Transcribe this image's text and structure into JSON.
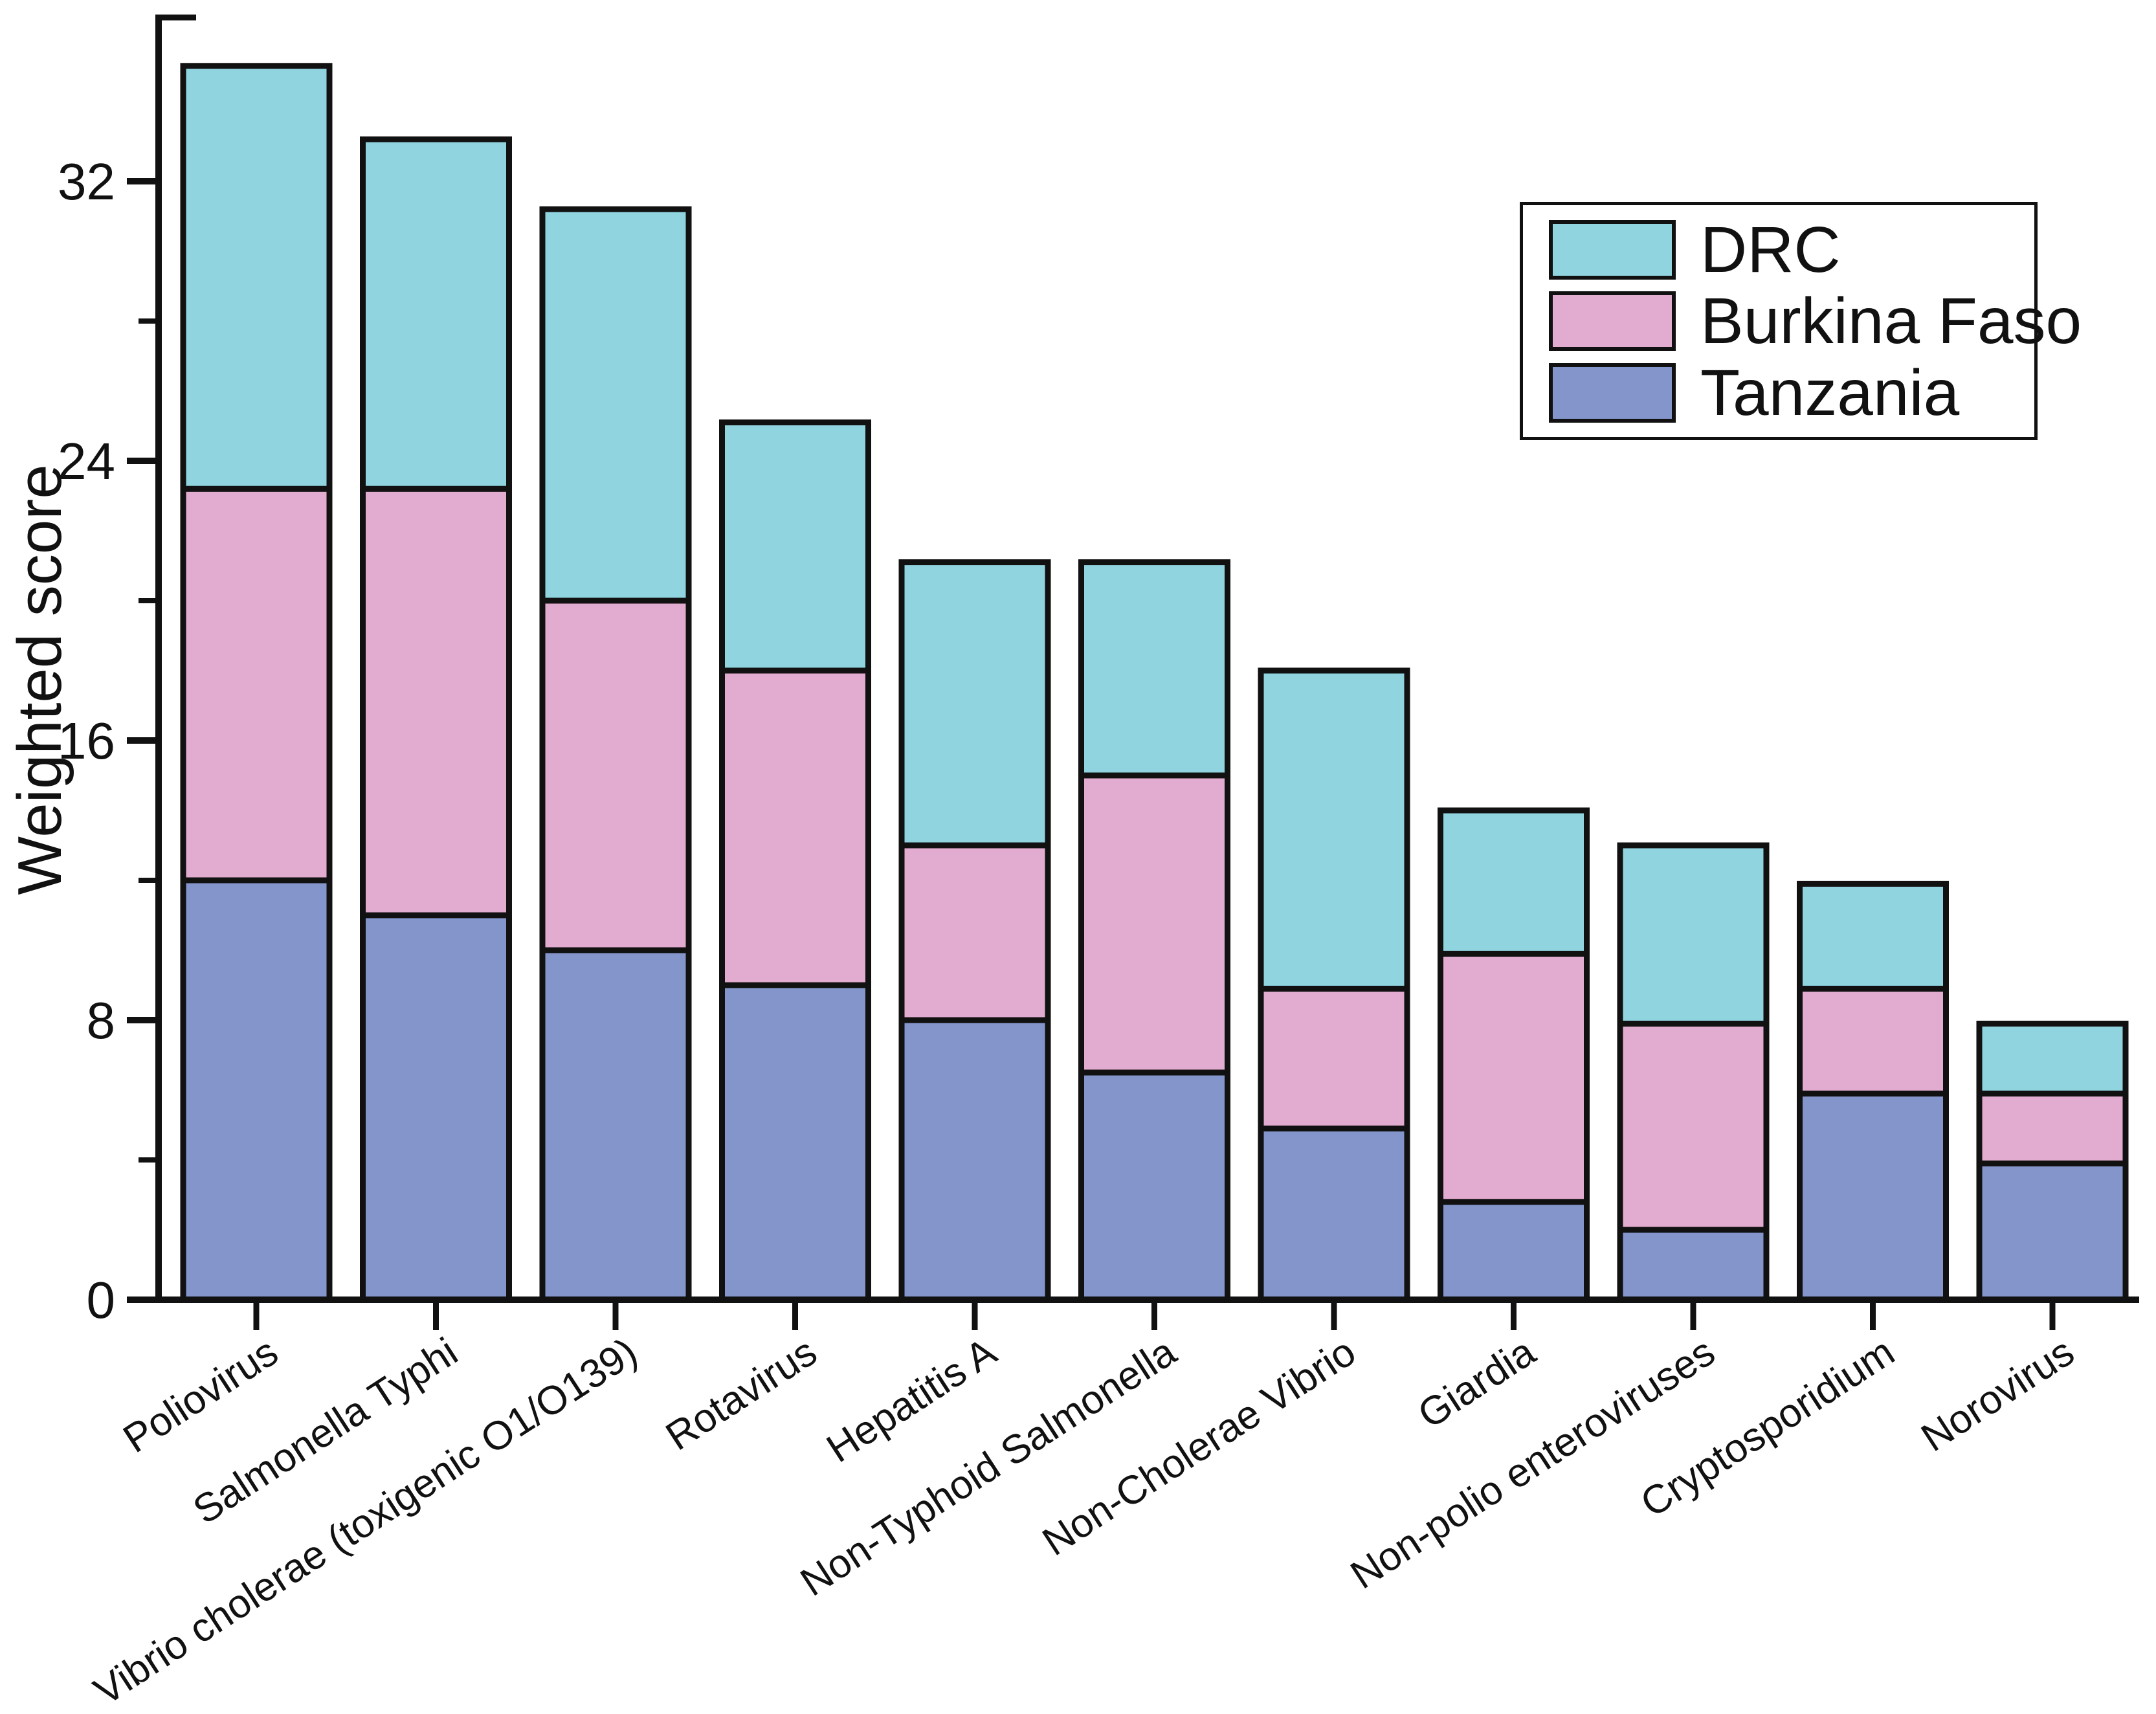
{
  "figure": {
    "background": "#ffffff"
  },
  "chart_data": {
    "type": "bar",
    "stacked": true,
    "title": "",
    "xlabel": "",
    "ylabel": "Weighted score",
    "ylim": [
      0,
      36.8
    ],
    "yticks_major": [
      0,
      8,
      16,
      24,
      32
    ],
    "yticks_minor": [
      4,
      12,
      20,
      28
    ],
    "grid": false,
    "legend_position": "top-right",
    "axis_color": "#111111",
    "bar_border_color": "#111111",
    "categories": [
      "Poliovirus",
      "Salmonella Typhi",
      "Vibrio cholerae (toxigenic O1/O139)",
      "Rotavirus",
      "Hepatitis A",
      "Non-Typhoid Salmonella",
      "Non-Cholerae Vibrio",
      "Giardia",
      "Non-polio enteroviruses",
      "Cryptosporidium",
      "Norovirus"
    ],
    "series": [
      {
        "name": "Tanzania",
        "color": "#8495cb",
        "values": [
          12.0,
          11.0,
          10.0,
          9.0,
          8.0,
          6.5,
          4.9,
          2.8,
          2.0,
          5.9,
          3.9
        ]
      },
      {
        "name": "Burkina Faso",
        "color": "#e2abd0",
        "values": [
          11.2,
          12.2,
          10.0,
          9.0,
          5.0,
          8.5,
          4.0,
          7.1,
          5.9,
          3.0,
          2.0
        ]
      },
      {
        "name": "DRC",
        "color": "#90d4e0",
        "values": [
          12.1,
          10.0,
          11.2,
          7.1,
          8.1,
          6.1,
          9.1,
          4.1,
          5.1,
          3.0,
          2.0
        ]
      }
    ]
  },
  "legend": {
    "items": [
      {
        "label": "DRC",
        "color": "#90d4e0"
      },
      {
        "label": "Burkina Faso",
        "color": "#e2abd0"
      },
      {
        "label": "Tanzania",
        "color": "#8495cb"
      }
    ]
  }
}
